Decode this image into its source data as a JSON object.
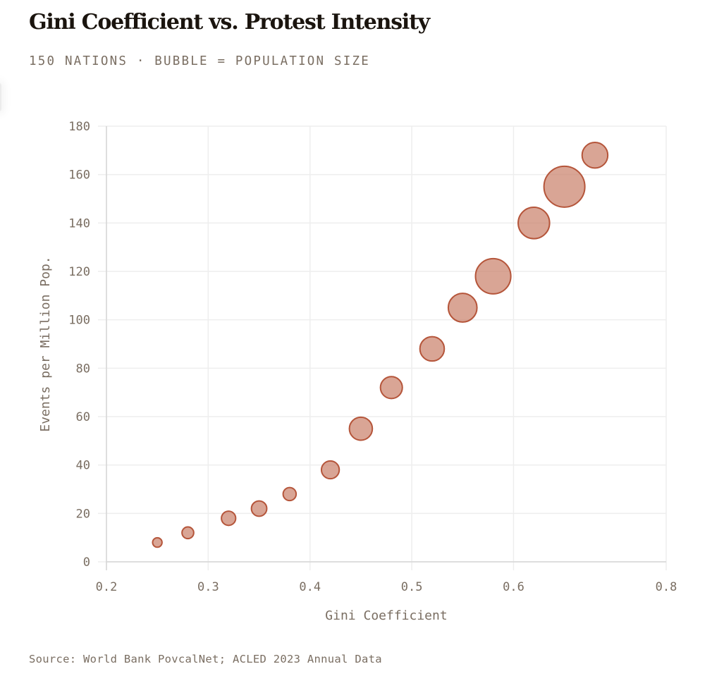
{
  "header": {
    "title": "Gini Coefficient vs. Protest Intensity",
    "subtitle": "150 NATIONS · BUBBLE = POPULATION SIZE"
  },
  "footer": {
    "source": "Source: World Bank PovcalNet; ACLED 2023 Annual Data"
  },
  "colors": {
    "bubble_fill": "#c97f68",
    "bubble_stroke": "#b5553a",
    "text": "#7a6e62",
    "title": "#1a140e",
    "grid": "#eeeeee",
    "axis": "#d6d6d6"
  },
  "chart_data": {
    "type": "scatter",
    "subtype": "bubble",
    "title": "Gini Coefficient vs. Protest Intensity",
    "subtitle": "150 NATIONS · BUBBLE = POPULATION SIZE",
    "xlabel": "Gini Coefficient",
    "ylabel": "Events per Million Pop.",
    "xlim": [
      0.2,
      0.75
    ],
    "ylim": [
      0,
      180
    ],
    "x_ticks": [
      {
        "value": 0.2,
        "label": "0.2"
      },
      {
        "value": 0.3,
        "label": "0.3"
      },
      {
        "value": 0.4,
        "label": "0.4"
      },
      {
        "value": 0.5,
        "label": "0.5"
      },
      {
        "value": 0.6,
        "label": "0.6"
      },
      {
        "value": 0.75,
        "label": "0.8"
      }
    ],
    "y_ticks": [
      0,
      20,
      40,
      60,
      80,
      100,
      120,
      140,
      160,
      180
    ],
    "grid": true,
    "legend": "none",
    "size_encoding": "population (relative)",
    "points": [
      {
        "x": 0.25,
        "y": 8,
        "size": 0.03
      },
      {
        "x": 0.28,
        "y": 12,
        "size": 0.06
      },
      {
        "x": 0.32,
        "y": 18,
        "size": 0.1
      },
      {
        "x": 0.35,
        "y": 22,
        "size": 0.12
      },
      {
        "x": 0.38,
        "y": 28,
        "size": 0.08
      },
      {
        "x": 0.42,
        "y": 38,
        "size": 0.17
      },
      {
        "x": 0.45,
        "y": 55,
        "size": 0.3
      },
      {
        "x": 0.48,
        "y": 72,
        "size": 0.27
      },
      {
        "x": 0.52,
        "y": 88,
        "size": 0.34
      },
      {
        "x": 0.55,
        "y": 105,
        "size": 0.48
      },
      {
        "x": 0.58,
        "y": 118,
        "size": 0.74
      },
      {
        "x": 0.62,
        "y": 140,
        "size": 0.58
      },
      {
        "x": 0.65,
        "y": 155,
        "size": 1.0
      },
      {
        "x": 0.68,
        "y": 168,
        "size": 0.38
      }
    ],
    "source": "Source: World Bank PovcalNet; ACLED 2023 Annual Data"
  }
}
